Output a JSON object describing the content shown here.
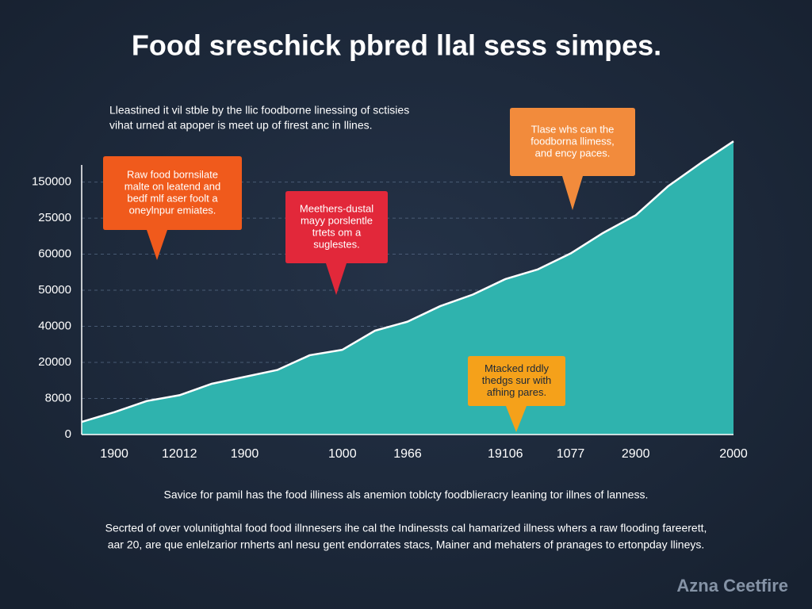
{
  "chart_data": {
    "type": "area",
    "title": "Food sreschick pbred llal sess simpes.",
    "subtitle": [
      "Lleastined it vil stble by the llic foodborne linessing of sctisies",
      "vihat urned at apoper is meet up of firest anc in llines."
    ],
    "categories": [
      null,
      "1900",
      null,
      "12012",
      null,
      "1900",
      null,
      null,
      "1000",
      null,
      "1966",
      null,
      null,
      "19106",
      null,
      "1077",
      null,
      "2900",
      null,
      null,
      "2000"
    ],
    "values": [
      0.35,
      0.62,
      0.93,
      1.09,
      1.41,
      1.6,
      1.79,
      2.2,
      2.35,
      2.88,
      3.13,
      3.56,
      3.88,
      4.31,
      4.58,
      5.02,
      5.59,
      6.08,
      6.89,
      7.53,
      8.13
    ],
    "color": "#2fb3ae",
    "line_color": "#ffffff",
    "ylim": [
      0,
      8.2
    ],
    "yticks": [
      0,
      {
        "value": 1,
        "label": "8000"
      },
      {
        "value": 2,
        "label": "20000"
      },
      {
        "value": 3,
        "label": "40000"
      },
      {
        "value": 4,
        "label": "50000"
      },
      {
        "value": 5,
        "label": "60000"
      },
      {
        "value": 6,
        "label": "25000"
      },
      {
        "value": 7,
        "label": "150000"
      }
    ],
    "grid": true,
    "annotations": [
      {
        "lines": [
          "Raw food bornsilate",
          "malte on leatend and",
          "bedf mlf aser foolt a",
          "oneylnpur emiates."
        ],
        "color": "#f05a1c"
      },
      {
        "lines": [
          "Meethers-dustal",
          "mayy porslentle",
          "trtets om a",
          "suglestes."
        ],
        "color": "#e2283a"
      },
      {
        "lines": [
          "Tlase whs can the",
          "foodborna llimess,",
          "and ency paces."
        ],
        "color": "#f28b3c"
      },
      {
        "lines": [
          "Mtacked rddly",
          "thedgs sur with",
          "afhing pares."
        ],
        "color": "#f5a11a"
      }
    ],
    "footer": [
      "Savice for pamil has the food illiness als anemion toblcty foodblieracry leaning tor illnes of lanness.",
      "Secrted of over volunitightal food food illnnesers ihe cal the Indinessts cal hamarized illness whers a raw flooding fareerett,",
      "aar 20, are que enlelzarior rnherts anl nesu gent endorrates stacs, Mainer and mehaters of pranages to ertonpday llineys."
    ],
    "watermark": "Azna Ceetfire"
  }
}
